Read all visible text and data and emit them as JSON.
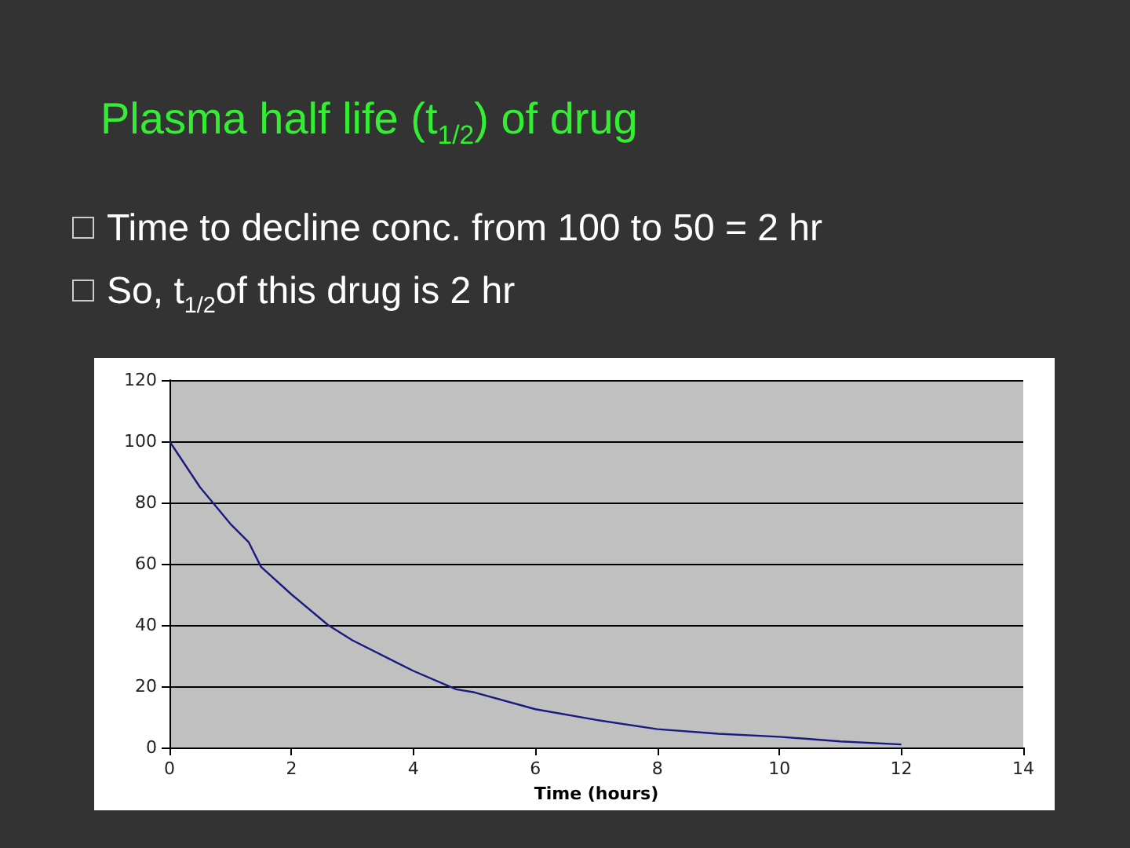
{
  "chart_data": {
    "type": "line",
    "title": "Plasma half life (t$_{1/2}$) of drug",
    "annotations": [
      "Time to decline conc. from 100 to 50 = 2 hr",
      "So, t$_{1/2}$of this drug is 2 hr"
    ],
    "xlabel": "Time (hours)",
    "x": [
      0,
      0.5,
      1,
      1.3,
      1.5,
      2,
      2.6,
      3,
      4,
      4.7,
      5,
      6,
      7,
      8,
      9,
      10,
      11,
      12
    ],
    "series": [
      {
        "color": "#1a1a80",
        "values": [
          100,
          85,
          73,
          67,
          59,
          50,
          40,
          35,
          25,
          19,
          18,
          12.5,
          9,
          6,
          4.5,
          3.5,
          2,
          1
        ]
      }
    ],
    "xlim": [
      0,
      14
    ],
    "xticks": [
      0,
      2,
      4,
      6,
      8,
      10,
      12,
      14
    ],
    "ylim": [
      0,
      120
    ],
    "yticks": [
      0,
      20,
      40,
      60,
      80,
      100,
      120
    ],
    "grid": "y",
    "marker": "none",
    "line_style": "solid"
  }
}
